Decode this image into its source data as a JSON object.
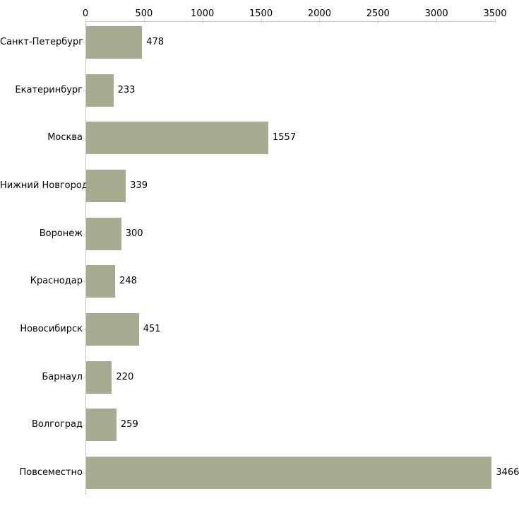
{
  "chart_data": {
    "type": "bar",
    "orientation": "horizontal",
    "title": "",
    "xlabel": "",
    "ylabel": "",
    "categories": [
      "Санкт-Петербург",
      "Екатеринбург",
      "Москва",
      "Нижний Новгород",
      "Воронеж",
      "Краснодар",
      "Новосибирск",
      "Барнаул",
      "Волгоград",
      "Повсеместно"
    ],
    "values": [
      478,
      233,
      1557,
      339,
      300,
      248,
      451,
      220,
      259,
      3466
    ],
    "x_ticks": [
      0,
      500,
      1000,
      1500,
      2000,
      2500,
      3000,
      3500
    ],
    "xlim": [
      0,
      3500
    ],
    "grid": false,
    "legend_position": "none",
    "axis_position": "top",
    "bar_color": "#a7ab90",
    "axis_line_color": "#c6c5bd",
    "tick_mark_color": "#d8d5be",
    "text_color": "#000000",
    "background_color": "#ffffff"
  }
}
